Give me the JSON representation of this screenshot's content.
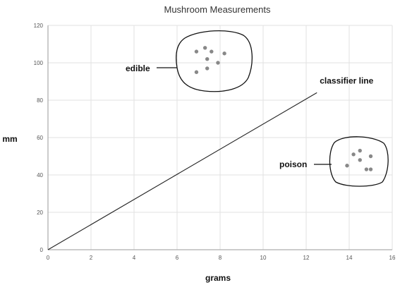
{
  "chart_data": {
    "type": "scatter",
    "title": "Mushroom Measurements",
    "xlabel": "grams",
    "ylabel": "mm",
    "xlim": [
      0,
      16
    ],
    "ylim": [
      0,
      120
    ],
    "xticks": [
      0,
      2,
      4,
      6,
      8,
      10,
      12,
      14,
      16
    ],
    "yticks": [
      0,
      20,
      40,
      60,
      80,
      100,
      120
    ],
    "grid": true,
    "series": [
      {
        "name": "edible",
        "color": "#888888",
        "points": [
          {
            "x": 6.9,
            "y": 106
          },
          {
            "x": 7.3,
            "y": 108
          },
          {
            "x": 7.6,
            "y": 106
          },
          {
            "x": 8.2,
            "y": 105
          },
          {
            "x": 7.4,
            "y": 102
          },
          {
            "x": 7.9,
            "y": 100
          },
          {
            "x": 7.4,
            "y": 97
          },
          {
            "x": 6.9,
            "y": 95
          }
        ]
      },
      {
        "name": "poison",
        "color": "#888888",
        "points": [
          {
            "x": 14.5,
            "y": 53
          },
          {
            "x": 14.2,
            "y": 51
          },
          {
            "x": 15.0,
            "y": 50
          },
          {
            "x": 14.5,
            "y": 48
          },
          {
            "x": 13.9,
            "y": 45
          },
          {
            "x": 14.8,
            "y": 43
          },
          {
            "x": 15.0,
            "y": 43
          }
        ]
      }
    ],
    "classifier_line": {
      "label": "classifier line",
      "from": {
        "x": 0,
        "y": 0
      },
      "to": {
        "x": 12.5,
        "y": 84
      }
    },
    "annotations": [
      {
        "text": "edible",
        "series": "edible"
      },
      {
        "text": "poison",
        "series": "poison"
      }
    ]
  }
}
